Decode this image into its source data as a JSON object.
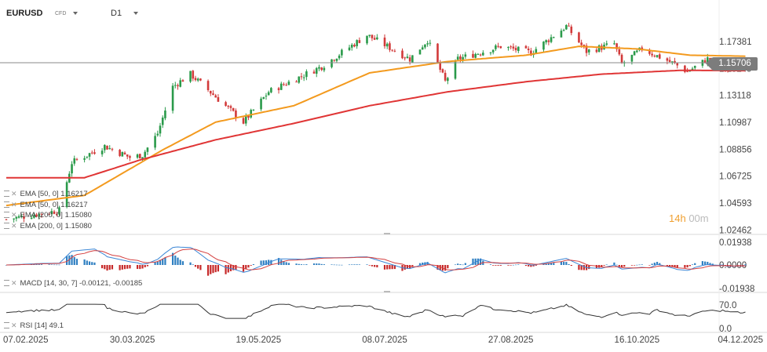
{
  "header": {
    "symbol": "EURUSD",
    "symbol_tag": "CFD",
    "timeframe": "D1"
  },
  "last_price": "1.15706",
  "countdown": {
    "hours": "14h",
    "minutes": "00m"
  },
  "price_legend": [
    {
      "label": "EMA  [50, 0]  1.16217"
    },
    {
      "label": "EMA  [50, 0]  1.16217"
    },
    {
      "label": "EMA  [200, 0]  1.15080"
    },
    {
      "label": "EMA  [200, 0]  1.15080"
    }
  ],
  "macd_legend": "MACD [14, 30, 7] -0.00121,  -0.00185",
  "rsi_legend": "RSI [14]  49.1",
  "colors": {
    "ema50": "#f39a1e",
    "ema200": "#e03535",
    "bull": "#2a9a4a",
    "bear": "#d23a3a",
    "hist_pos": "#2f7fc1",
    "hist_neg": "#c62828",
    "macd_line": "#3a86d6",
    "signal_line": "#d44040"
  },
  "chart_data": [
    {
      "type": "candlestick",
      "title": "EURUSD D1",
      "y_ticks": [
        "1.17381",
        "1.15249",
        "1.13118",
        "1.10987",
        "1.08856",
        "1.06725",
        "1.04593",
        "1.02462"
      ],
      "ylim": [
        1.0246,
        1.1878
      ],
      "x_ticks": [
        "07.02.2025",
        "30.03.2025",
        "19.05.2025",
        "08.07.2025",
        "27.08.2025",
        "16.10.2025",
        "04.12.2025"
      ],
      "x_range": [
        "2025-02-07",
        "2025-12-04"
      ],
      "last_bar": "2025-11-27",
      "series": [
        {
          "name": "EMA [50, 0]",
          "anchors": [
            [
              "2025-02-07",
              1.044
            ],
            [
              "2025-03-10",
              1.052
            ],
            [
              "2025-04-10",
              1.088
            ],
            [
              "2025-05-01",
              1.11
            ],
            [
              "2025-06-01",
              1.123
            ],
            [
              "2025-07-01",
              1.149
            ],
            [
              "2025-08-01",
              1.158
            ],
            [
              "2025-09-01",
              1.163
            ],
            [
              "2025-09-22",
              1.17
            ],
            [
              "2025-10-15",
              1.168
            ],
            [
              "2025-11-05",
              1.163
            ],
            [
              "2025-11-27",
              1.1622
            ]
          ]
        },
        {
          "name": "EMA [200, 0]",
          "anchors": [
            [
              "2025-02-07",
              1.066
            ],
            [
              "2025-03-10",
              1.066
            ],
            [
              "2025-04-01",
              1.08
            ],
            [
              "2025-05-01",
              1.096
            ],
            [
              "2025-06-01",
              1.109
            ],
            [
              "2025-07-01",
              1.123
            ],
            [
              "2025-08-01",
              1.134
            ],
            [
              "2025-09-01",
              1.142
            ],
            [
              "2025-10-01",
              1.148
            ],
            [
              "2025-11-01",
              1.151
            ],
            [
              "2025-11-27",
              1.1508
            ]
          ]
        }
      ],
      "close_anchors": [
        [
          "2025-02-07",
          1.033
        ],
        [
          "2025-02-28",
          1.04
        ],
        [
          "2025-03-05",
          1.078
        ],
        [
          "2025-03-18",
          1.091
        ],
        [
          "2025-03-28",
          1.082
        ],
        [
          "2025-04-02",
          1.084
        ],
        [
          "2025-04-08",
          1.101
        ],
        [
          "2025-04-14",
          1.138
        ],
        [
          "2025-04-21",
          1.148
        ],
        [
          "2025-05-01",
          1.13
        ],
        [
          "2025-05-12",
          1.11
        ],
        [
          "2025-05-22",
          1.134
        ],
        [
          "2025-06-12",
          1.154
        ],
        [
          "2025-06-30",
          1.179
        ],
        [
          "2025-07-17",
          1.16
        ],
        [
          "2025-07-24",
          1.175
        ],
        [
          "2025-07-31",
          1.142
        ],
        [
          "2025-08-05",
          1.16
        ],
        [
          "2025-08-22",
          1.17
        ],
        [
          "2025-09-03",
          1.165
        ],
        [
          "2025-09-17",
          1.186
        ],
        [
          "2025-09-25",
          1.166
        ],
        [
          "2025-10-06",
          1.172
        ],
        [
          "2025-10-09",
          1.156
        ],
        [
          "2025-10-17",
          1.168
        ],
        [
          "2025-10-30",
          1.156
        ],
        [
          "2025-11-04",
          1.15
        ],
        [
          "2025-11-12",
          1.16
        ],
        [
          "2025-11-20",
          1.152
        ],
        [
          "2025-11-27",
          1.1571
        ]
      ]
    },
    {
      "type": "bar",
      "title": "MACD [14, 30, 7]",
      "y_ticks": [
        "0.01938",
        "0.0000",
        "-0.01938"
      ],
      "ylim": [
        -0.0194,
        0.0194
      ],
      "values_last": {
        "macd": -0.00121,
        "signal": -0.00185
      }
    },
    {
      "type": "line",
      "title": "RSI [14]",
      "y_ticks": [
        "70.0",
        "0.0"
      ],
      "last": 49.1
    }
  ]
}
